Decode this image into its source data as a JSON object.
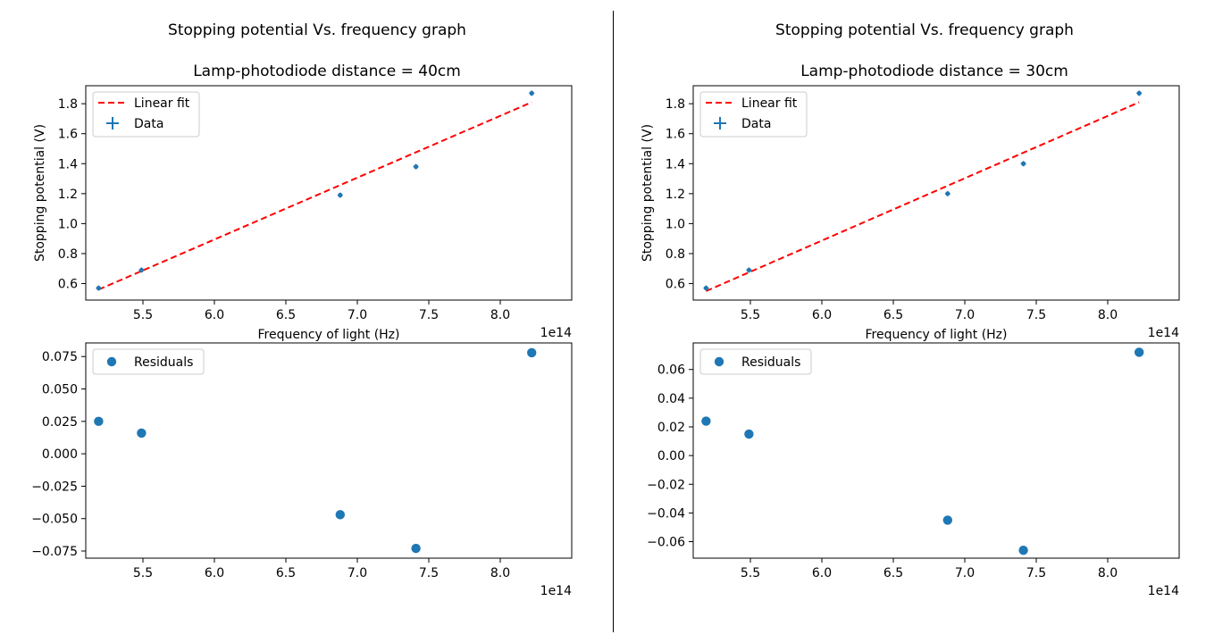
{
  "chart_data": [
    {
      "type": "scatter",
      "title": "Stopping potential Vs. frequency graph",
      "subtitle": "Lamp-photodiode distance = 40cm",
      "x_scale_label": "1e14",
      "top": {
        "xlabel": "Frequency of light (Hz)",
        "ylabel": "Stopping potential (V)",
        "xlim": [
          5.1,
          8.5
        ],
        "ylim": [
          0.49,
          1.92
        ],
        "xticks": [
          "5.5",
          "6.0",
          "6.5",
          "7.0",
          "7.5",
          "8.0"
        ],
        "yticks": [
          "0.6",
          "0.8",
          "1.0",
          "1.2",
          "1.4",
          "1.6",
          "1.8"
        ],
        "legend": [
          "Linear fit",
          "Data"
        ],
        "legend_position": "top-left",
        "fit_line": {
          "x": [
            5.19,
            8.22
          ],
          "y": [
            0.56,
            1.81
          ],
          "color": "#ff0000",
          "style": "dashed"
        },
        "series": [
          {
            "x": [
              5.19,
              5.49,
              6.88,
              7.41,
              8.22
            ],
            "y": [
              0.57,
              0.69,
              1.19,
              1.38,
              1.87
            ],
            "color": "#1f77b4"
          }
        ]
      },
      "bottom": {
        "xlim": [
          5.1,
          8.5
        ],
        "ylim": [
          -0.0805,
          0.0855
        ],
        "xticks": [
          "5.5",
          "6.0",
          "6.5",
          "7.0",
          "7.5",
          "8.0"
        ],
        "yticks": [
          "0.075",
          "0.050",
          "0.025",
          "0.000",
          "−0.025",
          "−0.050",
          "−0.075"
        ],
        "legend": [
          "Residuals"
        ],
        "legend_position": "top-left",
        "series": [
          {
            "name": "Residuals",
            "x": [
              5.19,
              5.49,
              6.88,
              7.41,
              8.22
            ],
            "y": [
              0.025,
              0.016,
              -0.047,
              -0.073,
              0.078
            ],
            "color": "#1f77b4"
          }
        ]
      }
    },
    {
      "type": "scatter",
      "title": "Stopping potential Vs. frequency graph",
      "subtitle": "Lamp-photodiode distance = 30cm",
      "x_scale_label": "1e14",
      "top": {
        "xlabel": "Frequency of light (Hz)",
        "ylabel": "Stopping potential (V)",
        "xlim": [
          5.1,
          8.5
        ],
        "ylim": [
          0.49,
          1.92
        ],
        "xticks": [
          "5.5",
          "6.0",
          "6.5",
          "7.0",
          "7.5",
          "8.0"
        ],
        "yticks": [
          "0.6",
          "0.8",
          "1.0",
          "1.2",
          "1.4",
          "1.6",
          "1.8"
        ],
        "legend": [
          "Linear fit",
          "Data"
        ],
        "legend_position": "top-left",
        "fit_line": {
          "x": [
            5.19,
            8.22
          ],
          "y": [
            0.55,
            1.81
          ],
          "color": "#ff0000",
          "style": "dashed"
        },
        "series": [
          {
            "x": [
              5.19,
              5.49,
              6.88,
              7.41,
              8.22
            ],
            "y": [
              0.57,
              0.69,
              1.2,
              1.4,
              1.87
            ],
            "color": "#1f77b4"
          }
        ]
      },
      "bottom": {
        "xlim": [
          5.1,
          8.5
        ],
        "ylim": [
          -0.0715,
          0.0785
        ],
        "xticks": [
          "5.5",
          "6.0",
          "6.5",
          "7.0",
          "7.5",
          "8.0"
        ],
        "yticks": [
          "0.06",
          "0.04",
          "0.02",
          "0.00",
          "−0.02",
          "−0.04",
          "−0.06"
        ],
        "legend": [
          "Residuals"
        ],
        "legend_position": "top-left",
        "series": [
          {
            "name": "Residuals",
            "x": [
              5.19,
              5.49,
              6.88,
              7.41,
              8.22
            ],
            "y": [
              0.024,
              0.015,
              -0.045,
              -0.066,
              0.072
            ],
            "color": "#1f77b4"
          }
        ]
      }
    }
  ]
}
